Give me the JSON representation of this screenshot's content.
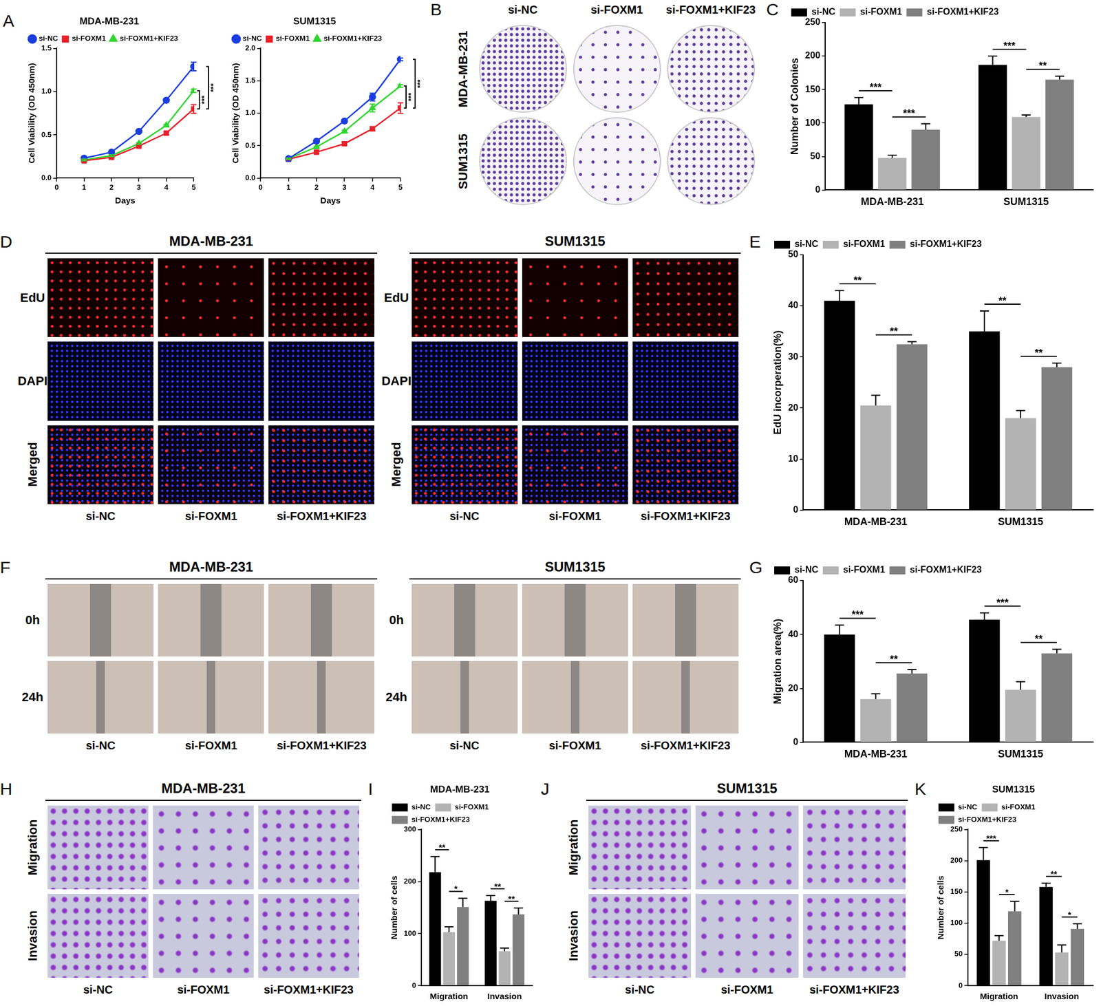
{
  "chart_data": [
    {
      "panel": "A",
      "type": "line",
      "title": "MDA-MB-231",
      "x_label": "Days",
      "y_label": "Cell Viability (OD 450nm)",
      "x": [
        1,
        2,
        3,
        4,
        5
      ],
      "xlim": [
        0,
        5
      ],
      "xticks": [
        0,
        1,
        2,
        3,
        4,
        5
      ],
      "ylim": [
        0,
        1.5
      ],
      "yticks": [
        {
          "value": 0,
          "label": "0.0"
        },
        {
          "value": 0.5,
          "label": "0.5"
        },
        {
          "value": 1,
          "label": "1.0"
        },
        {
          "value": 1.5,
          "label": "1.5"
        }
      ],
      "grid": false,
      "legend": "upper left",
      "series": [
        {
          "name": "si-NC",
          "color": "#1a3de0",
          "marker": "circle",
          "values": [
            0.23,
            0.3,
            0.54,
            0.9,
            1.29
          ],
          "errors": [
            0.01,
            0.01,
            0.01,
            0.02,
            0.05
          ]
        },
        {
          "name": "si-FOXM1",
          "color": "#e8202a",
          "marker": "square",
          "values": [
            0.2,
            0.24,
            0.37,
            0.52,
            0.8
          ],
          "errors": [
            0.01,
            0.01,
            0.01,
            0.02,
            0.05
          ]
        },
        {
          "name": "si-FOXM1+KIF23",
          "color": "#2ed62e",
          "marker": "triangle",
          "values": [
            0.21,
            0.26,
            0.4,
            0.61,
            1.01
          ],
          "errors": [
            0.01,
            0.01,
            0.01,
            0.01,
            0.02
          ]
        }
      ],
      "significance": [
        {
          "pair": [
            "si-NC",
            "si-FOXM1"
          ],
          "label": "***"
        },
        {
          "pair": [
            "si-FOXM1+KIF23",
            "si-FOXM1"
          ],
          "label": "***"
        }
      ]
    },
    {
      "type": "line",
      "title": "SUM1315",
      "x_label": "Days",
      "y_label": "Cell Viability (OD 450nm)",
      "x": [
        1,
        2,
        3,
        4,
        5
      ],
      "xlim": [
        0,
        5
      ],
      "xticks": [
        0,
        1,
        2,
        3,
        4,
        5
      ],
      "ylim": [
        0,
        2
      ],
      "yticks": [
        {
          "value": 0,
          "label": "0.0"
        },
        {
          "value": 0.5,
          "label": "0.5"
        },
        {
          "value": 1,
          "label": "1.0"
        },
        {
          "value": 1.5,
          "label": "1.5"
        },
        {
          "value": 2,
          "label": "2.0"
        }
      ],
      "grid": false,
      "legend": "upper left",
      "series": [
        {
          "name": "si-NC",
          "color": "#1a3de0",
          "marker": "circle",
          "values": [
            0.3,
            0.57,
            0.88,
            1.25,
            1.83
          ],
          "errors": [
            0.01,
            0.01,
            0.02,
            0.06,
            0.02
          ]
        },
        {
          "name": "si-FOXM1",
          "color": "#e8202a",
          "marker": "square",
          "values": [
            0.29,
            0.4,
            0.53,
            0.76,
            1.08
          ],
          "errors": [
            0.01,
            0.02,
            0.02,
            0.03,
            0.08
          ]
        },
        {
          "name": "si-FOXM1+KIF23",
          "color": "#2ed62e",
          "marker": "triangle",
          "values": [
            0.3,
            0.48,
            0.72,
            1.08,
            1.42
          ],
          "errors": [
            0.01,
            0.01,
            0.02,
            0.06,
            0.02
          ]
        }
      ],
      "significance": [
        {
          "pair": [
            "si-NC",
            "si-FOXM1"
          ],
          "label": "***"
        },
        {
          "pair": [
            "si-FOXM1+KIF23",
            "si-FOXM1"
          ],
          "label": "***"
        }
      ]
    },
    {
      "panel": "C",
      "type": "bar",
      "y_label": "Number of Colonies",
      "categories": [
        "MDA-MB-231",
        "SUM1315"
      ],
      "ylim": [
        0,
        250
      ],
      "yticks": [
        0,
        50,
        100,
        150,
        200,
        250
      ],
      "grid": false,
      "legend": "upper left",
      "series": [
        {
          "name": "si-NC",
          "color": "#000000",
          "values": [
            128,
            187
          ],
          "errors": [
            10,
            13
          ]
        },
        {
          "name": "si-FOXM1",
          "color": "#b3b3b3",
          "values": [
            48,
            109
          ],
          "errors": [
            4,
            3
          ]
        },
        {
          "name": "si-FOXM1+KIF23",
          "color": "#808080",
          "values": [
            90,
            165
          ],
          "errors": [
            9,
            5
          ]
        }
      ],
      "significance": [
        {
          "category": "MDA-MB-231",
          "pair": [
            "si-NC",
            "si-FOXM1"
          ],
          "label": "***"
        },
        {
          "category": "MDA-MB-231",
          "pair": [
            "si-FOXM1",
            "si-FOXM1+KIF23"
          ],
          "label": "***"
        },
        {
          "category": "SUM1315",
          "pair": [
            "si-NC",
            "si-FOXM1"
          ],
          "label": "***"
        },
        {
          "category": "SUM1315",
          "pair": [
            "si-FOXM1",
            "si-FOXM1+KIF23"
          ],
          "label": "**"
        }
      ]
    },
    {
      "panel": "E",
      "type": "bar",
      "y_label": "EdU incorperation(%)",
      "categories": [
        "MDA-MB-231",
        "SUM1315"
      ],
      "ylim": [
        0,
        50
      ],
      "yticks": [
        0,
        10,
        20,
        30,
        40,
        50
      ],
      "grid": false,
      "legend": "upper left",
      "series": [
        {
          "name": "si-NC",
          "color": "#000000",
          "values": [
            41,
            35
          ],
          "errors": [
            2,
            4
          ]
        },
        {
          "name": "si-FOXM1",
          "color": "#b3b3b3",
          "values": [
            20.5,
            18
          ],
          "errors": [
            2,
            1.5
          ]
        },
        {
          "name": "si-FOXM1+KIF23",
          "color": "#808080",
          "values": [
            32.5,
            28
          ],
          "errors": [
            0.5,
            0.8
          ]
        }
      ],
      "significance": [
        {
          "category": "MDA-MB-231",
          "pair": [
            "si-NC",
            "si-FOXM1"
          ],
          "label": "**"
        },
        {
          "category": "MDA-MB-231",
          "pair": [
            "si-FOXM1",
            "si-FOXM1+KIF23"
          ],
          "label": "**"
        },
        {
          "category": "SUM1315",
          "pair": [
            "si-NC",
            "si-FOXM1"
          ],
          "label": "**"
        },
        {
          "category": "SUM1315",
          "pair": [
            "si-FOXM1",
            "si-FOXM1+KIF23"
          ],
          "label": "**"
        }
      ]
    },
    {
      "panel": "G",
      "type": "bar",
      "y_label": "Migration area(%)",
      "categories": [
        "MDA-MB-231",
        "SUM1315"
      ],
      "ylim": [
        0,
        60
      ],
      "yticks": [
        0,
        20,
        40,
        60
      ],
      "grid": false,
      "legend": "upper left",
      "series": [
        {
          "name": "si-NC",
          "color": "#000000",
          "values": [
            40,
            45.5
          ],
          "errors": [
            3.5,
            2.5
          ]
        },
        {
          "name": "si-FOXM1",
          "color": "#b3b3b3",
          "values": [
            16,
            19.5
          ],
          "errors": [
            2,
            3
          ]
        },
        {
          "name": "si-FOXM1+KIF23",
          "color": "#808080",
          "values": [
            25.5,
            33
          ],
          "errors": [
            1.5,
            1.5
          ]
        }
      ],
      "significance": [
        {
          "category": "MDA-MB-231",
          "pair": [
            "si-NC",
            "si-FOXM1"
          ],
          "label": "***"
        },
        {
          "category": "MDA-MB-231",
          "pair": [
            "si-FOXM1",
            "si-FOXM1+KIF23"
          ],
          "label": "**"
        },
        {
          "category": "SUM1315",
          "pair": [
            "si-NC",
            "si-FOXM1"
          ],
          "label": "***"
        },
        {
          "category": "SUM1315",
          "pair": [
            "si-FOXM1",
            "si-FOXM1+KIF23"
          ],
          "label": "**"
        }
      ]
    },
    {
      "panel": "I",
      "type": "bar",
      "title": "MDA-MB-231",
      "y_label": "Number of cells",
      "categories": [
        "Migration",
        "Invasion"
      ],
      "ylim": [
        0,
        300
      ],
      "yticks": [
        0,
        100,
        200,
        300
      ],
      "grid": false,
      "legend": "upper left",
      "series": [
        {
          "name": "si-NC",
          "color": "#000000",
          "values": [
            218,
            163
          ],
          "errors": [
            30,
            10
          ]
        },
        {
          "name": "si-FOXM1",
          "color": "#b3b3b3",
          "values": [
            103,
            66
          ],
          "errors": [
            10,
            6
          ]
        },
        {
          "name": "si-FOXM1+KIF23",
          "color": "#808080",
          "values": [
            151,
            137
          ],
          "errors": [
            17,
            12
          ]
        }
      ],
      "significance": [
        {
          "category": "Migration",
          "pair": [
            "si-NC",
            "si-FOXM1"
          ],
          "label": "**"
        },
        {
          "category": "Migration",
          "pair": [
            "si-FOXM1",
            "si-FOXM1+KIF23"
          ],
          "label": "*"
        },
        {
          "category": "Invasion",
          "pair": [
            "si-NC",
            "si-FOXM1"
          ],
          "label": "**"
        },
        {
          "category": "Invasion",
          "pair": [
            "si-FOXM1",
            "si-FOXM1+KIF23"
          ],
          "label": "**"
        }
      ]
    },
    {
      "panel": "K",
      "type": "bar",
      "title": "SUM1315",
      "y_label": "Number of cells",
      "categories": [
        "Migration",
        "Invasion"
      ],
      "ylim": [
        0,
        250
      ],
      "yticks": [
        0,
        50,
        100,
        150,
        200,
        250
      ],
      "grid": false,
      "legend": "upper left",
      "series": [
        {
          "name": "si-NC",
          "color": "#000000",
          "values": [
            201,
            158
          ],
          "errors": [
            20,
            6
          ]
        },
        {
          "name": "si-FOXM1",
          "color": "#b3b3b3",
          "values": [
            72,
            53
          ],
          "errors": [
            8,
            12
          ]
        },
        {
          "name": "si-FOXM1+KIF23",
          "color": "#808080",
          "values": [
            119,
            91
          ],
          "errors": [
            16,
            8
          ]
        }
      ],
      "significance": [
        {
          "category": "Migration",
          "pair": [
            "si-NC",
            "si-FOXM1"
          ],
          "label": "***"
        },
        {
          "category": "Migration",
          "pair": [
            "si-FOXM1",
            "si-FOXM1+KIF23"
          ],
          "label": "*"
        },
        {
          "category": "Invasion",
          "pair": [
            "si-NC",
            "si-FOXM1"
          ],
          "label": "**"
        },
        {
          "category": "Invasion",
          "pair": [
            "si-FOXM1",
            "si-FOXM1+KIF23"
          ],
          "label": "*"
        }
      ]
    }
  ],
  "image_panels": [
    {
      "panel": "B",
      "groups": [
        {
          "rows": [
            "MDA-MB-231",
            "SUM1315"
          ],
          "columns": [
            "si-NC",
            "si-FOXM1",
            "si-FOXM1+KIF23"
          ]
        }
      ]
    },
    {
      "panel": "D",
      "groups": [
        {
          "title": "MDA-MB-231",
          "rows": [
            "EdU",
            "DAPI",
            "Merged"
          ],
          "columns": [
            "si-NC",
            "si-FOXM1",
            "si-FOXM1+KIF23"
          ]
        },
        {
          "title": "SUM1315",
          "rows": [
            "EdU",
            "DAPI",
            "Merged"
          ],
          "columns": [
            "si-NC",
            "si-FOXM1",
            "si-FOXM1+KIF23"
          ]
        }
      ]
    },
    {
      "panel": "F",
      "groups": [
        {
          "title": "MDA-MB-231",
          "rows": [
            "0h",
            "24h"
          ],
          "columns": [
            "si-NC",
            "si-FOXM1",
            "si-FOXM1+KIF23"
          ]
        },
        {
          "title": "SUM1315",
          "rows": [
            "0h",
            "24h"
          ],
          "columns": [
            "si-NC",
            "si-FOXM1",
            "si-FOXM1+KIF23"
          ]
        }
      ]
    },
    {
      "panel": "H",
      "groups": [
        {
          "title": "MDA-MB-231",
          "rows": [
            "Migration",
            "Invasion"
          ],
          "columns": [
            "si-NC",
            "si-FOXM1",
            "si-FOXM1+KIF23"
          ]
        }
      ]
    },
    {
      "panel": "J",
      "groups": [
        {
          "title": "SUM1315",
          "rows": [
            "Migration",
            "Invasion"
          ],
          "columns": [
            "si-NC",
            "si-FOXM1",
            "si-FOXM1+KIF23"
          ]
        }
      ]
    }
  ]
}
